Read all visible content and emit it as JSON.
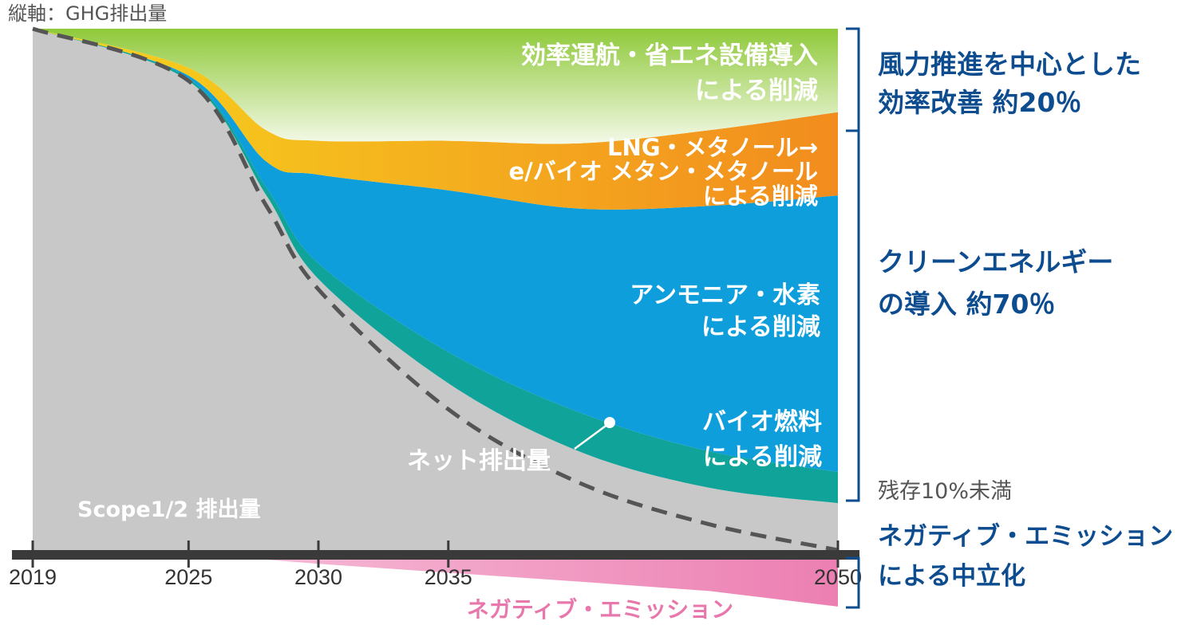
{
  "chart_data": {
    "type": "area",
    "ylabel": "縦軸：GHG排出量",
    "x_ticks": [
      "2019",
      "2025",
      "2030",
      "2035",
      "2050"
    ],
    "x": [
      2019,
      2025,
      2028,
      2030,
      2035,
      2040,
      2045,
      2050
    ],
    "series": [
      {
        "name": "Scope1/2 排出量",
        "color": "#c8c8c8",
        "values": [
          100,
          90,
          68,
          52,
          32,
          19,
          12,
          9
        ]
      },
      {
        "name": "バイオ燃料による削減",
        "color": "#10a39a",
        "values": [
          0,
          0.5,
          1.5,
          3,
          6,
          7.5,
          7,
          6
        ]
      },
      {
        "name": "アンモニア・水素による削減",
        "color": "#0d9edb",
        "values": [
          0,
          0.5,
          5,
          17,
          31,
          39,
          47,
          53
        ]
      },
      {
        "name": "LNG・メタノール→ e/バイオ メタン・メタノール による削減",
        "color": "#f5a623",
        "values": [
          0,
          1.5,
          6,
          6.5,
          9.5,
          12.5,
          14.5,
          16
        ]
      },
      {
        "name": "効率運航・省エネ設備導入 による削減",
        "color": "#a8d65a",
        "values": [
          0,
          7.5,
          19.5,
          21.5,
          21.5,
          22,
          19.5,
          16
        ]
      }
    ],
    "net_emissions": {
      "name": "ネット排出量",
      "values": [
        100,
        90,
        66,
        50,
        27,
        13,
        5,
        0
      ]
    },
    "negative_emissions": {
      "name": "ネガティブ・エミッション",
      "color": "#ee86b6",
      "values": [
        0,
        0,
        0,
        -0.8,
        -2.5,
        -4.2,
        -6,
        -9
      ]
    },
    "area_labels": {
      "efficiency": [
        "効率運航・省エネ設備導入",
        "による削減"
      ],
      "lng": [
        "LNG・メタノール→",
        "e/バイオ メタン・メタノール",
        "による削減"
      ],
      "ammonia": [
        "アンモニア・水素",
        "による削減"
      ],
      "biofuel": [
        "バイオ燃料",
        "による削減"
      ],
      "net": "ネット排出量",
      "scope": "Scope1/2 排出量",
      "negative": "ネガティブ・エミッション"
    },
    "annotations": [
      {
        "lines": [
          "風力推進を中心とした",
          "効率改善 約20％"
        ]
      },
      {
        "lines": [
          "クリーンエネルギー",
          "の導入 約70％"
        ]
      },
      {
        "lines": [
          "残存10%未満"
        ]
      },
      {
        "lines": [
          "ネガティブ・エミッション",
          "による中立化"
        ]
      }
    ],
    "colors": {
      "axis": "#3a3a3a",
      "bracket": "#0d4d8f",
      "dashed": "#555555"
    }
  }
}
